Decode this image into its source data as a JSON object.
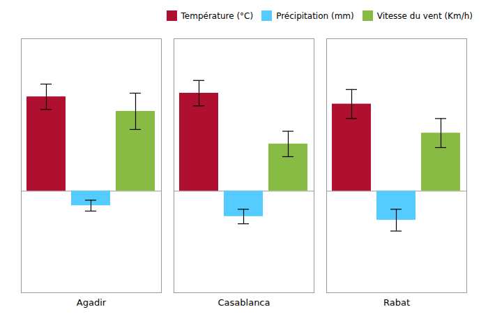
{
  "chart_data": {
    "type": "bar",
    "categories": [
      "Agadir",
      "Casablanca",
      "Rabat"
    ],
    "series": [
      {
        "name": "Température (°C)",
        "color": "#B01030",
        "values": [
          26,
          27,
          24
        ],
        "errors": [
          3.5,
          3.5,
          4
        ]
      },
      {
        "name": "Précipitation (mm)",
        "color": "#55CCFF",
        "values": [
          -4,
          -7,
          -8
        ],
        "errors": [
          1.5,
          2,
          3
        ]
      },
      {
        "name": "Vitesse du vent (Km/h)",
        "color": "#88BB44",
        "values": [
          22,
          13,
          16
        ],
        "errors": [
          5,
          3.5,
          4
        ]
      }
    ],
    "ylim": [
      -28,
      42
    ],
    "yticks": [],
    "hline": 0,
    "grid": false,
    "legend": "upper right",
    "tick_labels": "x"
  }
}
